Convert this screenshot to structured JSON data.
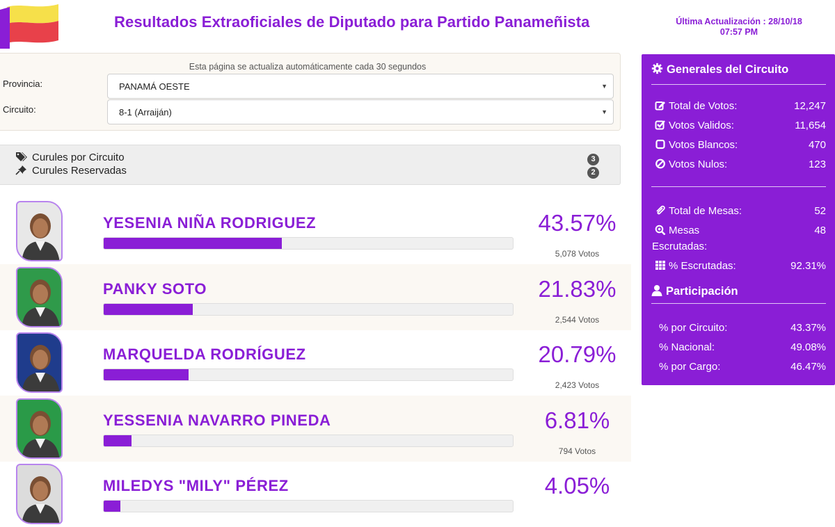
{
  "header": {
    "title": "Resultados Extraoficiales de Diputado para Partido Panameñista",
    "update_label": "Última Actualización : 28/10/18",
    "update_time": "07:57 PM"
  },
  "colors": {
    "accent": "#8a1ed6",
    "flag_yellow": "#f6e04a",
    "flag_red": "#e8414a",
    "flag_purple": "#8a1ed6"
  },
  "filters": {
    "note": "Esta página se actualiza automáticamente cada 30 segundos",
    "provincia_label": "Provincia:",
    "provincia_value": "PANAMÁ OESTE",
    "circuito_label": "Circuito:",
    "circuito_value": "8-1 (Arraiján)"
  },
  "curules": {
    "por_circuito_label": "Curules por Circuito",
    "por_circuito_value": "3",
    "reservadas_label": "Curules Reservadas",
    "reservadas_value": "2"
  },
  "candidates": [
    {
      "name": "YESENIA NIÑA RODRIGUEZ",
      "percent": "43.57%",
      "votes": "5,078 Votos",
      "share": 0.4357,
      "photo_bg": "#e8e8e8"
    },
    {
      "name": "PANKY SOTO",
      "percent": "21.83%",
      "votes": "2,544 Votos",
      "share": 0.2183,
      "photo_bg": "#2f9a4a"
    },
    {
      "name": "MARQUELDA RODRÍGUEZ",
      "percent": "20.79%",
      "votes": "2,423 Votos",
      "share": 0.2079,
      "photo_bg": "#1f3c8c"
    },
    {
      "name": "YESSENIA NAVARRO PINEDA",
      "percent": "6.81%",
      "votes": "794 Votos",
      "share": 0.0681,
      "photo_bg": "#2a9a48"
    },
    {
      "name": "MILEDYS \"MILY\" PÉREZ",
      "percent": "4.05%",
      "votes": "",
      "share": 0.0405,
      "photo_bg": "#dcdcdc"
    }
  ],
  "sidebar": {
    "generales_title": "Generales del Circuito",
    "total_votos_label": "Total de Votos:",
    "total_votos_value": "12,247",
    "votos_validos_label": "Votos Validos:",
    "votos_validos_value": "11,654",
    "votos_blancos_label": "Votos Blancos:",
    "votos_blancos_value": "470",
    "votos_nulos_label": "Votos Nulos:",
    "votos_nulos_value": "123",
    "total_mesas_label": "Total de Mesas:",
    "total_mesas_value": "52",
    "mesas_escrutadas_label": "Mesas",
    "mesas_escrutadas_label2": "Escrutadas:",
    "mesas_escrutadas_value": "48",
    "pct_escrutadas_label": "% Escrutadas:",
    "pct_escrutadas_value": "92.31%",
    "participacion_title": "Participación",
    "por_circuito_label": "% por Circuito:",
    "por_circuito_value": "43.37%",
    "nacional_label": "% Nacional:",
    "nacional_value": "49.08%",
    "por_cargo_label": "% por Cargo:",
    "por_cargo_value": "46.47%"
  }
}
